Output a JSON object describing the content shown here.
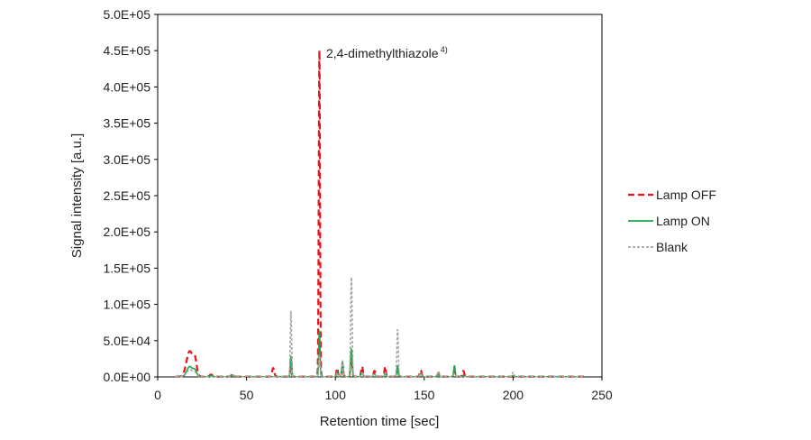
{
  "chart_data": {
    "type": "line",
    "title": "",
    "xlabel": "Retention time [sec]",
    "ylabel": "Signal intensity [a.u.]",
    "xlim": [
      0,
      250
    ],
    "ylim": [
      0,
      500000
    ],
    "x_ticks": [
      0,
      50,
      100,
      150,
      200,
      250
    ],
    "x_tick_labels": [
      "0",
      "50",
      "100",
      "150",
      "200",
      "250"
    ],
    "y_ticks": [
      0,
      50000,
      100000,
      150000,
      200000,
      250000,
      300000,
      350000,
      400000,
      450000,
      500000
    ],
    "y_tick_labels": [
      "0.0E+00",
      "5.0E+04",
      "1.0E+05",
      "1.5E+05",
      "2.0E+05",
      "2.5E+05",
      "3.0E+05",
      "3.5E+05",
      "4.0E+05",
      "4.5E+05",
      "5.0E+05"
    ],
    "grid": false,
    "legend_position": "right",
    "annotation": {
      "text": "2,4-dimethylthiazole",
      "superscript": "4)",
      "x": 91,
      "y": 450000
    },
    "series": [
      {
        "name": "Lamp OFF",
        "color": "#e8131b",
        "style": "dashed",
        "peaks": [
          [
            18,
            35000,
            1.8
          ],
          [
            21,
            20000,
            1.0
          ],
          [
            30,
            3000,
            0.8
          ],
          [
            42,
            2500,
            0.8
          ],
          [
            65,
            12000,
            0.6
          ],
          [
            75,
            25000,
            0.35
          ],
          [
            91,
            450000,
            0.35
          ],
          [
            101,
            12000,
            0.4
          ],
          [
            104,
            18000,
            0.4
          ],
          [
            109,
            30000,
            0.45
          ],
          [
            115,
            14000,
            0.5
          ],
          [
            122,
            8000,
            0.5
          ],
          [
            128,
            14000,
            0.4
          ],
          [
            135,
            12000,
            0.4
          ],
          [
            148,
            9000,
            0.5
          ],
          [
            158,
            5000,
            0.5
          ],
          [
            167,
            6000,
            0.5
          ],
          [
            172,
            8000,
            0.5
          ]
        ]
      },
      {
        "name": "Lamp ON",
        "color": "#1aa64a",
        "style": "solid",
        "peaks": [
          [
            18,
            14000,
            1.6
          ],
          [
            21,
            8000,
            1.0
          ],
          [
            30,
            2000,
            0.8
          ],
          [
            42,
            2500,
            0.8
          ],
          [
            75,
            28000,
            0.35
          ],
          [
            91,
            63000,
            0.35
          ],
          [
            101,
            7000,
            0.4
          ],
          [
            104,
            20000,
            0.4
          ],
          [
            109,
            38000,
            0.45
          ],
          [
            115,
            6000,
            0.5
          ],
          [
            122,
            4000,
            0.5
          ],
          [
            128,
            5000,
            0.4
          ],
          [
            135,
            15000,
            0.4
          ],
          [
            148,
            4000,
            0.5
          ],
          [
            158,
            3000,
            0.5
          ],
          [
            167,
            15000,
            0.4
          ],
          [
            172,
            2000,
            0.5
          ],
          [
            200,
            1500,
            0.5
          ]
        ]
      },
      {
        "name": "Blank",
        "color": "#a6a6a6",
        "style": "dotted",
        "peaks": [
          [
            18,
            10000,
            1.6
          ],
          [
            21,
            5000,
            1.0
          ],
          [
            42,
            2000,
            0.8
          ],
          [
            75,
            90000,
            0.35
          ],
          [
            91,
            30000,
            0.35
          ],
          [
            101,
            5000,
            0.4
          ],
          [
            104,
            22000,
            0.4
          ],
          [
            109,
            137000,
            0.4
          ],
          [
            115,
            5000,
            0.5
          ],
          [
            122,
            4000,
            0.5
          ],
          [
            128,
            6000,
            0.4
          ],
          [
            135,
            65000,
            0.4
          ],
          [
            148,
            5000,
            0.5
          ],
          [
            158,
            7000,
            0.5
          ],
          [
            167,
            4000,
            0.5
          ],
          [
            200,
            6000,
            0.5
          ]
        ]
      }
    ]
  }
}
